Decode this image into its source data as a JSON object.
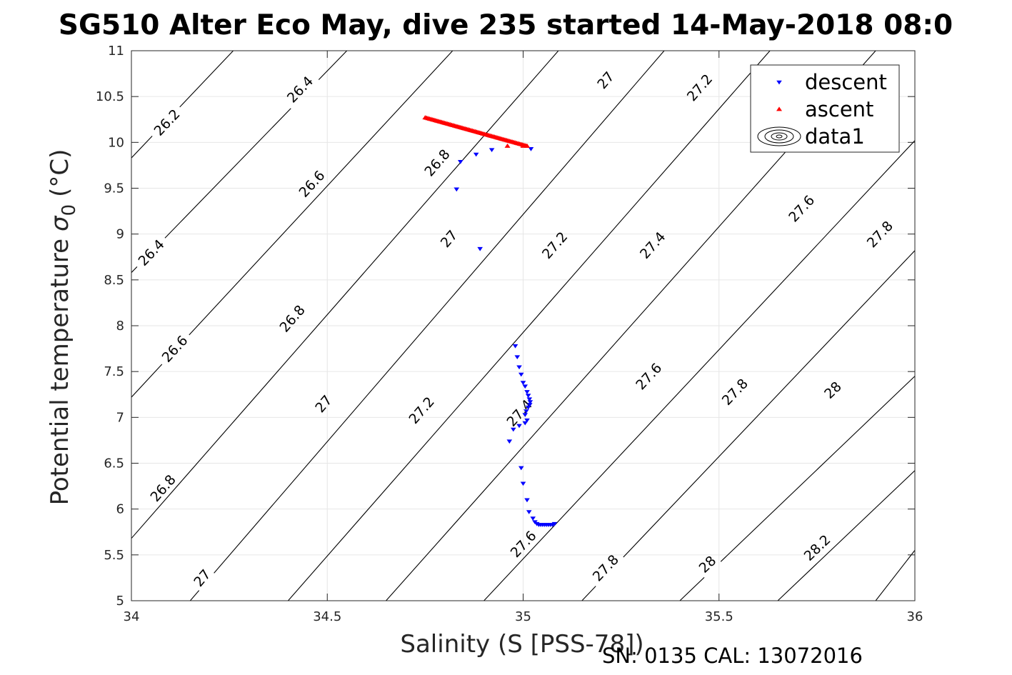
{
  "chart_data": {
    "type": "scatter",
    "title": "SG510 Alter Eco May, dive 235 started 14-May-2018 08:0",
    "xlabel": "Salinity (S [PSS-78])",
    "ylabel": "Potential temperature",
    "ylabel_sigma": "σ",
    "ylabel_sub": "0",
    "ylabel_unit": "(°C)",
    "xlim": [
      34,
      36
    ],
    "ylim": [
      5,
      11
    ],
    "xticks": [
      34,
      34.5,
      35,
      35.5,
      36
    ],
    "xtick_labels": [
      "34",
      "34.5",
      "35",
      "35.5",
      "36"
    ],
    "yticks": [
      5,
      5.5,
      6,
      6.5,
      7,
      7.5,
      8,
      8.5,
      9,
      9.5,
      10,
      10.5,
      11
    ],
    "ytick_labels": [
      "5",
      "5.5",
      "6",
      "6.5",
      "7",
      "7.5",
      "8",
      "8.5",
      "9",
      "9.5",
      "10",
      "10.5",
      "11"
    ],
    "grid": true,
    "legend_position": "top-right",
    "footer": "SN: 0135  CAL: 13072016",
    "series": [
      {
        "name": "descent",
        "marker": "triangle-down",
        "color": "#0000ff",
        "points": [
          [
            34.83,
            9.49
          ],
          [
            34.84,
            9.79
          ],
          [
            34.88,
            9.87
          ],
          [
            34.92,
            9.92
          ],
          [
            35.02,
            9.93
          ],
          [
            34.89,
            8.84
          ],
          [
            34.98,
            7.78
          ],
          [
            34.985,
            7.66
          ],
          [
            34.99,
            7.55
          ],
          [
            34.995,
            7.47
          ],
          [
            35.0,
            7.38
          ],
          [
            35.005,
            7.34
          ],
          [
            35.01,
            7.28
          ],
          [
            35.013,
            7.24
          ],
          [
            35.016,
            7.2
          ],
          [
            35.018,
            7.17
          ],
          [
            35.017,
            7.14
          ],
          [
            35.013,
            7.11
          ],
          [
            35.008,
            7.07
          ],
          [
            35.005,
            7.03
          ],
          [
            35.01,
            6.97
          ],
          [
            35.005,
            6.94
          ],
          [
            34.99,
            6.91
          ],
          [
            34.975,
            6.87
          ],
          [
            34.965,
            6.74
          ],
          [
            34.995,
            6.45
          ],
          [
            35.0,
            6.28
          ],
          [
            35.01,
            6.1
          ],
          [
            35.015,
            5.97
          ],
          [
            35.025,
            5.9
          ],
          [
            35.03,
            5.86
          ],
          [
            35.035,
            5.84
          ],
          [
            35.04,
            5.83
          ],
          [
            35.045,
            5.83
          ],
          [
            35.05,
            5.83
          ],
          [
            35.055,
            5.83
          ],
          [
            35.06,
            5.83
          ],
          [
            35.065,
            5.83
          ],
          [
            35.07,
            5.83
          ],
          [
            35.075,
            5.83
          ],
          [
            35.08,
            5.84
          ]
        ]
      },
      {
        "name": "ascent",
        "marker": "triangle-up",
        "color": "#ff0000",
        "segment": {
          "from": [
            34.75,
            10.27
          ],
          "to": [
            35.01,
            9.96
          ],
          "count": 70
        },
        "points": [
          [
            34.96,
            9.96
          ],
          [
            35.0,
            9.96
          ],
          [
            35.01,
            9.96
          ]
        ]
      },
      {
        "name": "data1",
        "marker": "contour"
      }
    ],
    "contours": {
      "color": "#000000",
      "levels": [
        26.2,
        26.4,
        26.6,
        26.8,
        27,
        27.2,
        27.4,
        27.6,
        27.8,
        28,
        28.2
      ],
      "lines": [
        {
          "level": "26.2",
          "pts": [
            [
              34.0,
              9.83
            ],
            [
              34.26,
              11.0
            ]
          ]
        },
        {
          "level": "26.4",
          "pts": [
            [
              34.0,
              8.58
            ],
            [
              34.55,
              11.0
            ]
          ]
        },
        {
          "level": "26.6",
          "pts": [
            [
              34.0,
              7.22
            ],
            [
              34.82,
              11.0
            ]
          ]
        },
        {
          "level": "26.8",
          "pts": [
            [
              34.0,
              5.68
            ],
            [
              35.09,
              11.0
            ]
          ]
        },
        {
          "level": "27",
          "pts": [
            [
              34.15,
              5.0
            ],
            [
              35.36,
              11.0
            ]
          ]
        },
        {
          "level": "27.2",
          "pts": [
            [
              34.4,
              5.0
            ],
            [
              35.63,
              11.0
            ]
          ]
        },
        {
          "level": "27.4",
          "pts": [
            [
              34.65,
              5.0
            ],
            [
              35.9,
              11.0
            ]
          ]
        },
        {
          "level": "27.6",
          "pts": [
            [
              34.9,
              5.0
            ],
            [
              36.0,
              10.02
            ]
          ]
        },
        {
          "level": "27.8",
          "pts": [
            [
              35.15,
              5.0
            ],
            [
              36.0,
              8.82
            ]
          ]
        },
        {
          "level": "28",
          "pts": [
            [
              35.4,
              5.0
            ],
            [
              36.0,
              7.45
            ]
          ]
        },
        {
          "level": "28.2",
          "pts": [
            [
              35.65,
              5.0
            ],
            [
              36.0,
              6.42
            ]
          ]
        },
        {
          "level": "",
          "pts": [
            [
              35.9,
              5.0
            ],
            [
              36.0,
              5.55
            ]
          ]
        }
      ],
      "labels": [
        {
          "text": "26.2",
          "x": 34.09,
          "y": 10.22
        },
        {
          "text": "26.4",
          "x": 34.43,
          "y": 10.58
        },
        {
          "text": "26.4",
          "x": 34.05,
          "y": 8.8
        },
        {
          "text": "26.6",
          "x": 34.46,
          "y": 9.55
        },
        {
          "text": "26.6",
          "x": 34.11,
          "y": 7.75
        },
        {
          "text": "26.8",
          "x": 34.78,
          "y": 9.78
        },
        {
          "text": "26.8",
          "x": 34.41,
          "y": 8.08
        },
        {
          "text": "26.8",
          "x": 34.08,
          "y": 6.23
        },
        {
          "text": "27",
          "x": 35.21,
          "y": 10.68
        },
        {
          "text": "27",
          "x": 34.81,
          "y": 8.95
        },
        {
          "text": "27",
          "x": 34.49,
          "y": 7.15
        },
        {
          "text": "27",
          "x": 34.18,
          "y": 5.25
        },
        {
          "text": "27.2",
          "x": 35.45,
          "y": 10.6
        },
        {
          "text": "27.2",
          "x": 35.08,
          "y": 8.88
        },
        {
          "text": "27.2",
          "x": 34.74,
          "y": 7.08
        },
        {
          "text": "27.4",
          "x": 35.33,
          "y": 8.88
        },
        {
          "text": "27.4",
          "x": 34.99,
          "y": 7.05
        },
        {
          "text": "27.6",
          "x": 35.71,
          "y": 9.28
        },
        {
          "text": "27.6",
          "x": 35.32,
          "y": 7.45
        },
        {
          "text": "27.6",
          "x": 35.0,
          "y": 5.62
        },
        {
          "text": "27.8",
          "x": 35.91,
          "y": 9.0
        },
        {
          "text": "27.8",
          "x": 35.54,
          "y": 7.28
        },
        {
          "text": "27.8",
          "x": 35.21,
          "y": 5.36
        },
        {
          "text": "28",
          "x": 35.79,
          "y": 7.3
        },
        {
          "text": "28",
          "x": 35.47,
          "y": 5.4
        },
        {
          "text": "28.2",
          "x": 35.75,
          "y": 5.58
        }
      ]
    }
  }
}
